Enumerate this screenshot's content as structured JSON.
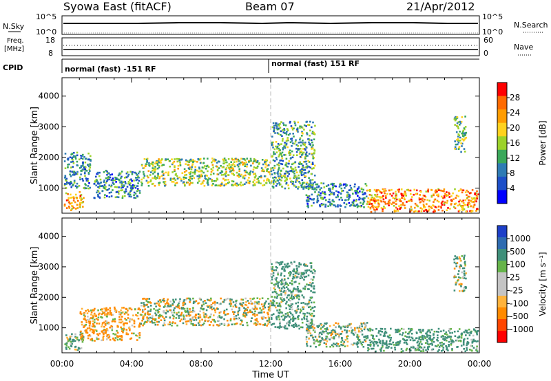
{
  "header": {
    "title": "Syowa East (fitACF)",
    "beam": "Beam 07",
    "date": "21/Apr/2012"
  },
  "top_panels": {
    "nsky_label": "N.Sky",
    "nsearch_label": "N.Search",
    "freq_label_1": "Freq.",
    "freq_label_2": "[MHz]",
    "nave_label": "Nave",
    "cpid_label": "CPID",
    "noise_left_ticks": [
      "10^5",
      "10^0"
    ],
    "noise_right_ticks": [
      "10^5",
      "10^0"
    ],
    "freq_ticks": [
      "18",
      "8"
    ],
    "nave_ticks": [
      "60",
      "0"
    ],
    "cpid_segments": [
      "normal (fast) -151 RF",
      "normal (fast) 151 RF"
    ]
  },
  "power_colorbar": {
    "label": "Power [dB]",
    "ticks": [
      "28",
      "24",
      "20",
      "16",
      "12",
      "8",
      "4"
    ],
    "colors": [
      "#ff0000",
      "#ff6a00",
      "#ff9c00",
      "#ffd21e",
      "#9cd22a",
      "#3aa85a",
      "#2e7bb4",
      "#1d4fc8",
      "#0000ff"
    ]
  },
  "velocity_colorbar": {
    "label": "Velocity [m s⁻¹]",
    "ticks": [
      "1000",
      "500",
      "100",
      "25",
      "-25",
      "-100",
      "-500",
      "-1000"
    ],
    "colors": [
      "#1d3fc8",
      "#2e6bb0",
      "#3f8f7a",
      "#66b44a",
      "#c4c4c4",
      "#c4c4c4",
      "#ffb33c",
      "#ff8a00",
      "#ff4500",
      "#ff0000"
    ]
  },
  "chart_data": [
    {
      "type": "heatmap",
      "title": "",
      "xlabel": "",
      "ylabel": "Slant Range [km]",
      "x_ticks": [
        "00:00",
        "04:00",
        "08:00",
        "12:00",
        "16:00",
        "20:00",
        "00:00"
      ],
      "y_ticks": [
        "1000",
        "2000",
        "3000",
        "4000"
      ],
      "x_range_hours": [
        0,
        24
      ],
      "y_range_km": [
        180,
        4600
      ],
      "value_label": "Power [dB]",
      "value_range": [
        0,
        30
      ],
      "echo_regions": [
        {
          "hour_start": 0.1,
          "hour_end": 1.2,
          "km_low": 300,
          "km_high": 900,
          "power_db": 22
        },
        {
          "hour_start": 0.1,
          "hour_end": 1.6,
          "km_low": 1000,
          "km_high": 2200,
          "power_db": 10
        },
        {
          "hour_start": 1.8,
          "hour_end": 4.5,
          "km_low": 700,
          "km_high": 1600,
          "power_db": 10
        },
        {
          "hour_start": 4.5,
          "hour_end": 12.0,
          "km_low": 1100,
          "km_high": 2000,
          "power_db": 16
        },
        {
          "hour_start": 12.0,
          "hour_end": 14.5,
          "km_low": 1000,
          "km_high": 3200,
          "power_db": 12
        },
        {
          "hour_start": 14.0,
          "hour_end": 17.5,
          "km_low": 400,
          "km_high": 1200,
          "power_db": 9
        },
        {
          "hour_start": 17.5,
          "hour_end": 23.9,
          "km_low": 250,
          "km_high": 1000,
          "power_db": 24
        },
        {
          "hour_start": 22.5,
          "hour_end": 23.2,
          "km_low": 2200,
          "km_high": 3400,
          "power_db": 14
        }
      ]
    },
    {
      "type": "heatmap",
      "title": "",
      "xlabel": "Time UT",
      "ylabel": "Slant Range [km]",
      "x_ticks": [
        "00:00",
        "04:00",
        "08:00",
        "12:00",
        "16:00",
        "20:00",
        "00:00"
      ],
      "y_ticks": [
        "1000",
        "2000",
        "3000",
        "4000"
      ],
      "x_range_hours": [
        0,
        24
      ],
      "y_range_km": [
        180,
        4600
      ],
      "value_label": "Velocity [m s⁻¹]",
      "value_range": [
        -1000,
        1000
      ],
      "echo_regions": [
        {
          "hour_start": 0.1,
          "hour_end": 1.2,
          "km_low": 300,
          "km_high": 900,
          "velocity": 150
        },
        {
          "hour_start": 1.0,
          "hour_end": 4.5,
          "km_low": 600,
          "km_high": 1700,
          "velocity": -150
        },
        {
          "hour_start": 4.5,
          "hour_end": 12.0,
          "km_low": 1100,
          "km_high": 2000,
          "velocity": 0
        },
        {
          "hour_start": 12.0,
          "hour_end": 14.5,
          "km_low": 1000,
          "km_high": 3200,
          "velocity": 200
        },
        {
          "hour_start": 14.0,
          "hour_end": 17.5,
          "km_low": 400,
          "km_high": 1200,
          "velocity": 120
        },
        {
          "hour_start": 17.5,
          "hour_end": 23.9,
          "km_low": 250,
          "km_high": 1000,
          "velocity": 250
        },
        {
          "hour_start": 22.5,
          "hour_end": 23.2,
          "km_low": 2200,
          "km_high": 3400,
          "velocity": 100
        }
      ]
    }
  ]
}
